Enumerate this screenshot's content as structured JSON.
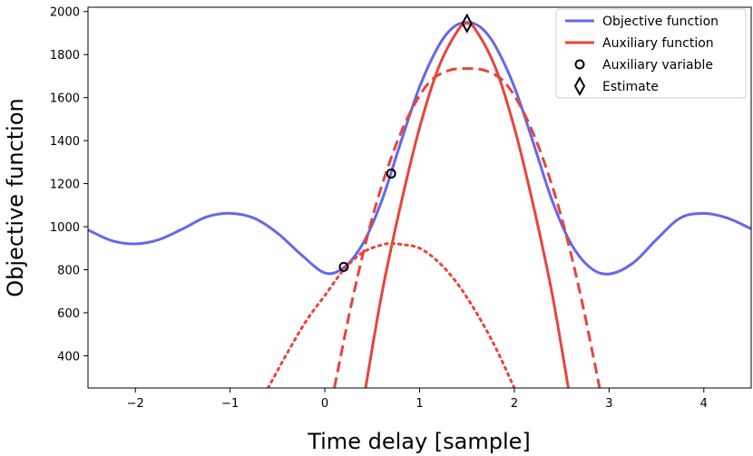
{
  "chart_data": {
    "type": "line",
    "title": "",
    "xlabel": "Time delay [sample]",
    "ylabel": "Objective function",
    "xlim": [
      -2.5,
      4.5
    ],
    "ylim": [
      250,
      2020
    ],
    "xticks": [
      -2,
      -1,
      0,
      1,
      2,
      3,
      4
    ],
    "xtick_labels": [
      "−2",
      "−1",
      "0",
      "1",
      "2",
      "3",
      "4"
    ],
    "yticks": [
      400,
      600,
      800,
      1000,
      1200,
      1400,
      1600,
      1800,
      2000
    ],
    "ytick_labels": [
      "400",
      "600",
      "800",
      "1000",
      "1200",
      "1400",
      "1600",
      "1800",
      "2000"
    ],
    "grid": false,
    "legend_position": "top-right",
    "legend": [
      {
        "label": "Objective function",
        "marker": "line",
        "color": "#6666ee"
      },
      {
        "label": "Auxiliary function",
        "marker": "line",
        "color": "#e8443a"
      },
      {
        "label": "Auxiliary variable",
        "marker": "circle",
        "color": "#000000"
      },
      {
        "label": "Estimate",
        "marker": "diamond",
        "color": "#000000"
      }
    ],
    "series": [
      {
        "style": "solid",
        "color": "#6666ee",
        "points": [
          [
            -2.5,
            985
          ],
          [
            -2.25,
            935
          ],
          [
            -2.0,
            920
          ],
          [
            -1.75,
            940
          ],
          [
            -1.5,
            990
          ],
          [
            -1.25,
            1045
          ],
          [
            -1.0,
            1062
          ],
          [
            -0.75,
            1040
          ],
          [
            -0.5,
            970
          ],
          [
            -0.25,
            870
          ],
          [
            0.0,
            785
          ],
          [
            0.2,
            810
          ],
          [
            0.4,
            920
          ],
          [
            0.6,
            1120
          ],
          [
            0.8,
            1390
          ],
          [
            1.0,
            1650
          ],
          [
            1.2,
            1840
          ],
          [
            1.35,
            1925
          ],
          [
            1.5,
            1950
          ],
          [
            1.65,
            1925
          ],
          [
            1.8,
            1840
          ],
          [
            2.0,
            1650
          ],
          [
            2.2,
            1390
          ],
          [
            2.4,
            1120
          ],
          [
            2.6,
            920
          ],
          [
            2.8,
            810
          ],
          [
            3.0,
            780
          ],
          [
            3.25,
            830
          ],
          [
            3.5,
            940
          ],
          [
            3.75,
            1040
          ],
          [
            4.0,
            1062
          ],
          [
            4.25,
            1040
          ],
          [
            4.5,
            990
          ]
        ]
      },
      {
        "style": "solid",
        "color": "#e8443a",
        "points": [
          [
            0.43,
            250
          ],
          [
            0.6,
            685
          ],
          [
            0.8,
            1100
          ],
          [
            1.0,
            1460
          ],
          [
            1.2,
            1740
          ],
          [
            1.4,
            1910
          ],
          [
            1.5,
            1945
          ],
          [
            1.6,
            1910
          ],
          [
            1.8,
            1740
          ],
          [
            2.0,
            1460
          ],
          [
            2.2,
            1100
          ],
          [
            2.4,
            685
          ],
          [
            2.57,
            250
          ]
        ]
      },
      {
        "style": "dashed",
        "color": "#e8443a",
        "points": [
          [
            0.1,
            250
          ],
          [
            0.3,
            680
          ],
          [
            0.5,
            1040
          ],
          [
            0.7,
            1320
          ],
          [
            0.9,
            1530
          ],
          [
            1.1,
            1670
          ],
          [
            1.3,
            1725
          ],
          [
            1.5,
            1735
          ],
          [
            1.7,
            1725
          ],
          [
            1.9,
            1670
          ],
          [
            2.1,
            1530
          ],
          [
            2.3,
            1320
          ],
          [
            2.5,
            1040
          ],
          [
            2.7,
            680
          ],
          [
            2.9,
            250
          ]
        ]
      },
      {
        "style": "dotted",
        "color": "#e8443a",
        "points": [
          [
            -0.6,
            250
          ],
          [
            -0.4,
            410
          ],
          [
            -0.2,
            560
          ],
          [
            0.0,
            680
          ],
          [
            0.2,
            800
          ],
          [
            0.4,
            880
          ],
          [
            0.6,
            915
          ],
          [
            0.7,
            922
          ],
          [
            0.8,
            918
          ],
          [
            1.0,
            900
          ],
          [
            1.2,
            835
          ],
          [
            1.4,
            735
          ],
          [
            1.6,
            600
          ],
          [
            1.8,
            440
          ],
          [
            2.0,
            250
          ]
        ]
      }
    ],
    "markers": [
      {
        "type": "circle",
        "x": 0.2,
        "y": 813
      },
      {
        "type": "circle",
        "x": 0.7,
        "y": 1247
      },
      {
        "type": "diamond",
        "x": 1.5,
        "y": 1945
      }
    ]
  }
}
